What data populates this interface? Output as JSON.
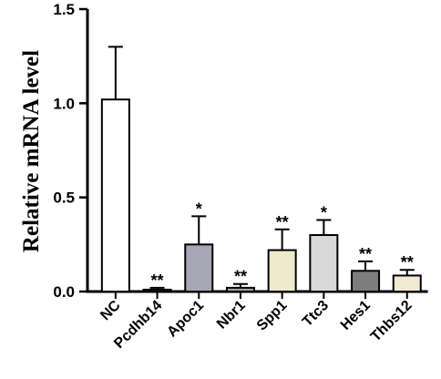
{
  "chart_data": {
    "type": "bar",
    "title": "",
    "xlabel": "",
    "ylabel": "Relative mRNA  level",
    "ylim": [
      0,
      1.5
    ],
    "yticks": [
      "0.0",
      "0.5",
      "1.0",
      "1.5"
    ],
    "grid": false,
    "categories": [
      "NC",
      "Pcdhb14",
      "Apoc1",
      "Nbr1",
      "Spp1",
      "Ttc3",
      "Hes1",
      "Thbs12"
    ],
    "values": [
      1.02,
      0.01,
      0.25,
      0.02,
      0.22,
      0.3,
      0.11,
      0.085
    ],
    "errors": [
      0.28,
      0.01,
      0.15,
      0.02,
      0.11,
      0.08,
      0.05,
      0.03
    ],
    "significance": [
      "",
      "**",
      "*",
      "**",
      "**",
      "*",
      "**",
      "**"
    ],
    "colors": [
      "#ffffff",
      "#8c8c8c",
      "#a6a6b4",
      "#a0a0a8",
      "#efeacb",
      "#d9d9d9",
      "#7d7d7d",
      "#f1e9d2"
    ]
  }
}
